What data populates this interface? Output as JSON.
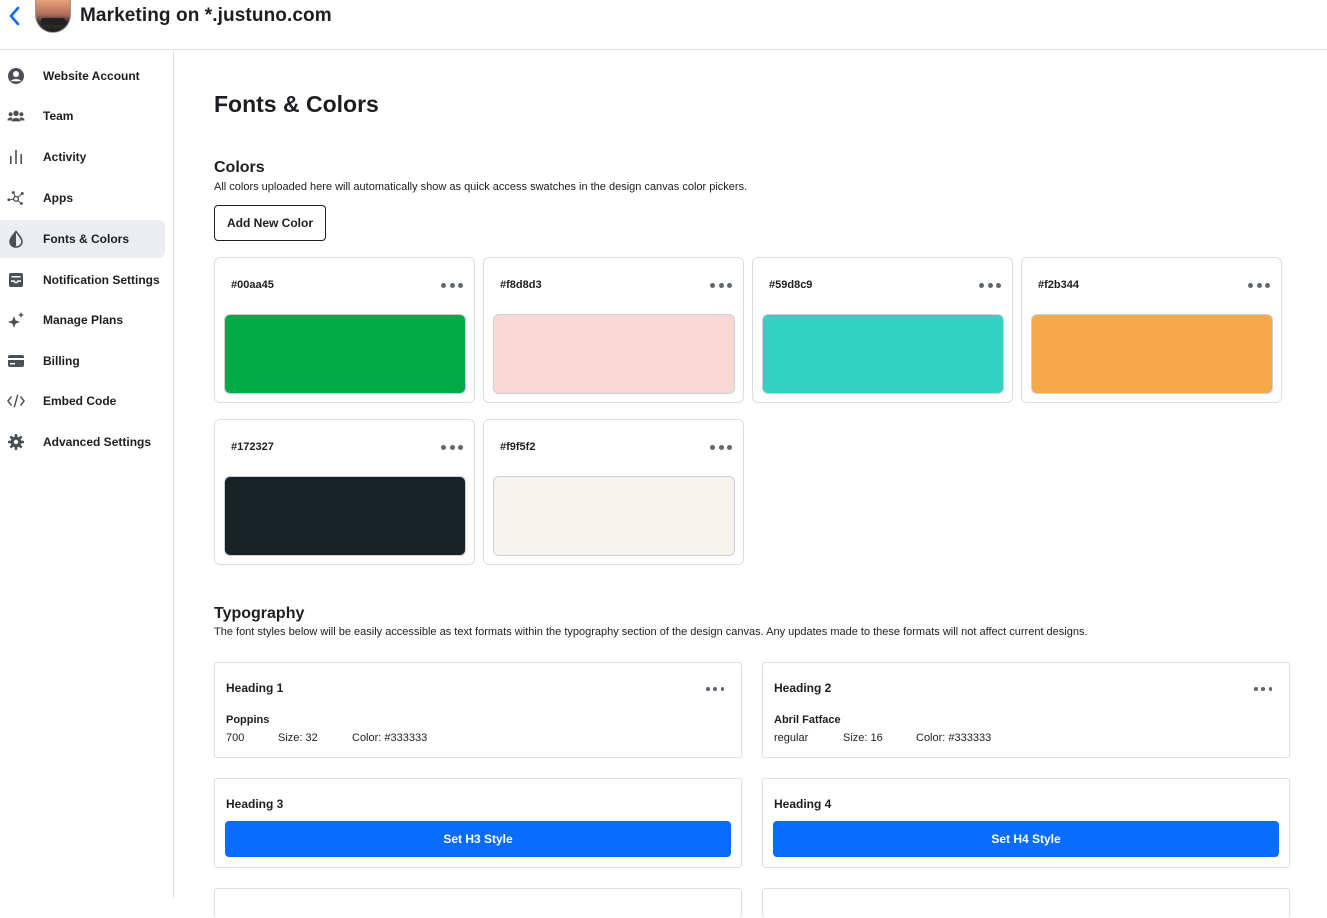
{
  "header": {
    "title": "Marketing on *.justuno.com",
    "back_icon": "chevron-left-icon",
    "accent": "#0a6cff"
  },
  "sidebar": {
    "items": [
      {
        "label": "Website Account",
        "icon": "user-circle-icon"
      },
      {
        "label": "Team",
        "icon": "users-icon"
      },
      {
        "label": "Activity",
        "icon": "bar-chart-icon"
      },
      {
        "label": "Apps",
        "icon": "network-icon"
      },
      {
        "label": "Fonts & Colors",
        "icon": "half-drop-icon",
        "active": true
      },
      {
        "label": "Notification Settings",
        "icon": "inbox-icon"
      },
      {
        "label": "Manage Plans",
        "icon": "sparkles-icon"
      },
      {
        "label": "Billing",
        "icon": "credit-card-icon"
      },
      {
        "label": "Embed Code",
        "icon": "code-icon"
      },
      {
        "label": "Advanced Settings",
        "icon": "gear-icon"
      }
    ]
  },
  "main": {
    "page_title": "Fonts & Colors",
    "colors": {
      "title": "Colors",
      "description": "All colors uploaded here will automatically show as quick access swatches in the design canvas color pickers.",
      "add_button": "Add New Color",
      "items": [
        {
          "hex": "#00aa45"
        },
        {
          "hex": "#f8d8d3"
        },
        {
          "hex": "#59d8c9"
        },
        {
          "hex": "#f2b344"
        },
        {
          "hex": "#172327"
        },
        {
          "hex": "#f9f5f2"
        }
      ]
    },
    "typography": {
      "title": "Typography",
      "description": "The font styles below will be easily accessible as text formats within the typography section of the design canvas. Any updates made to these formats will not affect current designs.",
      "h1": {
        "name": "Heading 1",
        "font": "Poppins",
        "weight": "700",
        "size": "Size: 32",
        "color": "Color: #333333"
      },
      "h2": {
        "name": "Heading 2",
        "font": "Abril Fatface",
        "weight": "regular",
        "size": "Size: 16",
        "color": "Color: #333333"
      },
      "h3": {
        "name": "Heading 3",
        "button": "Set H3 Style"
      },
      "h4": {
        "name": "Heading 4",
        "button": "Set H4 Style"
      }
    }
  }
}
